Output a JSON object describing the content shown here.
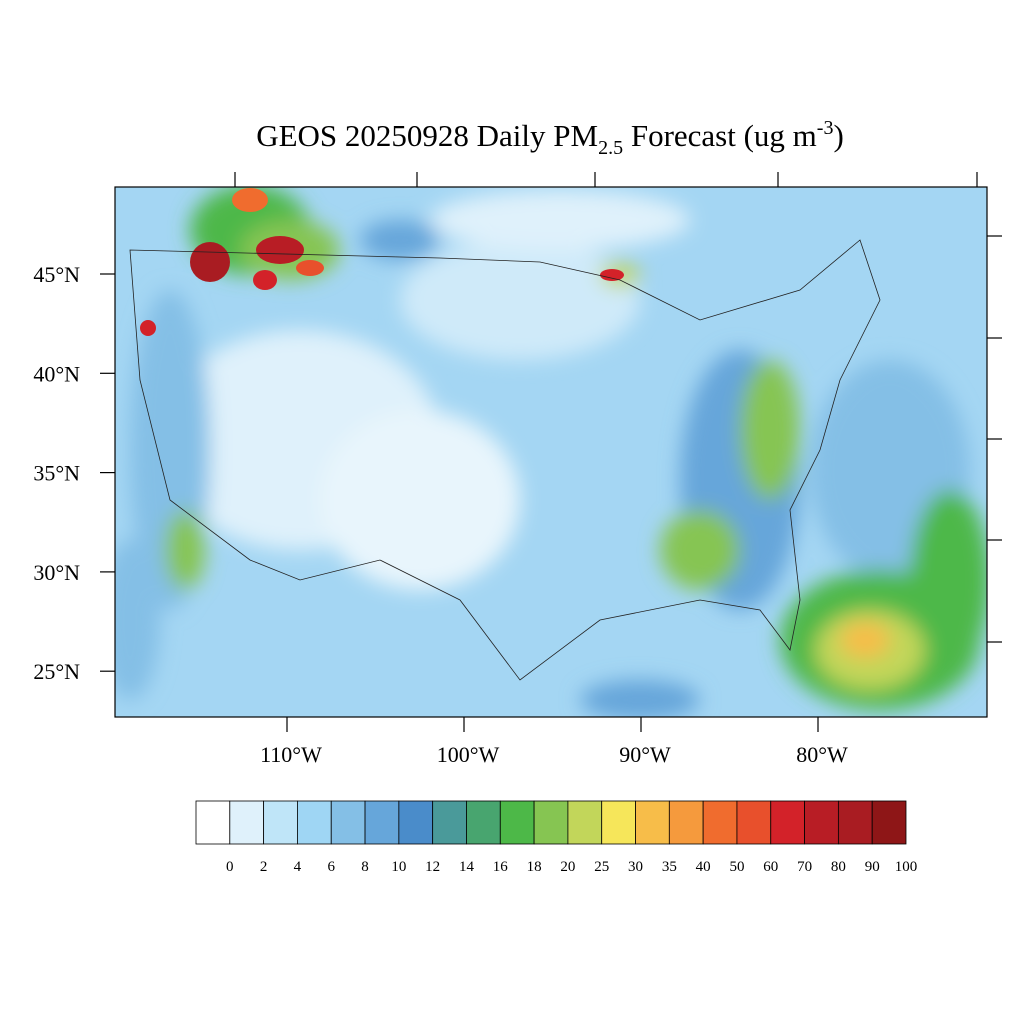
{
  "map": {
    "title_parts": [
      "GEOS 20250928 Daily PM",
      "2.5",
      " Forecast (ug m",
      "-3",
      ")"
    ],
    "lat_labels": [
      "45°N",
      "40°N",
      "35°N",
      "30°N",
      "25°N"
    ],
    "lon_labels": [
      "110°W",
      "100°W",
      "90°W",
      "80°W"
    ],
    "colorbar": {
      "levels": [
        0,
        2,
        4,
        6,
        8,
        10,
        12,
        14,
        16,
        18,
        20,
        25,
        30,
        35,
        40,
        50,
        60,
        70,
        80,
        90,
        100
      ],
      "colors": [
        "#ffffff",
        "#dff1fb",
        "#bfe5f8",
        "#9fd6f4",
        "#84bfe6",
        "#66a6da",
        "#4a8cca",
        "#4a9a9a",
        "#48a56f",
        "#4db848",
        "#86c552",
        "#c2d65a",
        "#f6e65a",
        "#f7bd49",
        "#f59a3d",
        "#f06c2e",
        "#e8502c",
        "#d32229",
        "#b81d25",
        "#a91c22",
        "#8e1617"
      ]
    }
  }
}
